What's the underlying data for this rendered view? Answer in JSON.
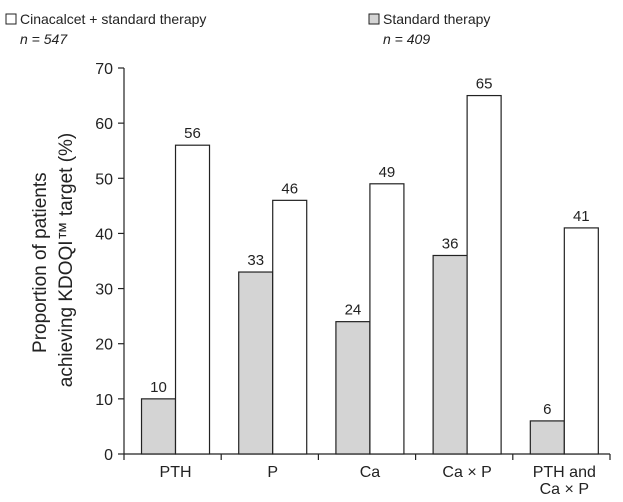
{
  "chart_data": {
    "type": "bar",
    "categories": [
      [
        "PTH"
      ],
      [
        "P"
      ],
      [
        "Ca"
      ],
      [
        "Ca × P"
      ],
      [
        "PTH and",
        "Ca × P"
      ]
    ],
    "series": [
      {
        "name": "Standard therapy",
        "n_label": "n = 409",
        "color": "#d4d4d4",
        "values": [
          10,
          33,
          24,
          36,
          6
        ]
      },
      {
        "name": "Cinacalcet + standard therapy",
        "n_label": "n = 547",
        "color": "#ffffff",
        "values": [
          56,
          46,
          49,
          65,
          41
        ]
      }
    ],
    "ylabel": [
      "Proportion of patients",
      "achieving KDOQI™ target (%)"
    ],
    "ylim": [
      0,
      70
    ],
    "yticks": [
      0,
      10,
      20,
      30,
      40,
      50,
      60,
      70
    ],
    "grid": false,
    "legend": "top"
  }
}
